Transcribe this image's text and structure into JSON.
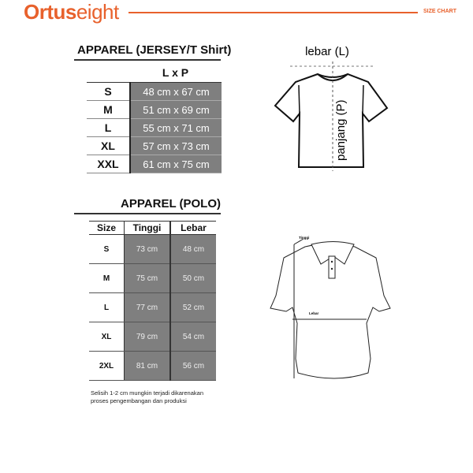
{
  "header": {
    "brand_bold": "Ortus",
    "brand_light": "eight",
    "label": "SIZE CHART",
    "accent": "#e8612c"
  },
  "jersey": {
    "title": "APPAREL (JERSEY/T Shirt)",
    "column_header": "L x P",
    "rows": [
      {
        "size": "S",
        "value": "48 cm x 67 cm"
      },
      {
        "size": "M",
        "value": "51 cm x 69 cm"
      },
      {
        "size": "L",
        "value": "55 cm x 71 cm"
      },
      {
        "size": "XL",
        "value": "57 cm x 73 cm"
      },
      {
        "size": "XXL",
        "value": "61 cm x 75 cm"
      }
    ],
    "diagram": {
      "width_label": "lebar (L)",
      "length_label": "panjang (P)"
    }
  },
  "polo": {
    "title": "APPAREL (POLO)",
    "headers": [
      "Size",
      "Tinggi",
      "Lebar"
    ],
    "rows": [
      {
        "size": "S",
        "tinggi": "73 cm",
        "lebar": "48 cm"
      },
      {
        "size": "M",
        "tinggi": "75 cm",
        "lebar": "50 cm"
      },
      {
        "size": "L",
        "tinggi": "77 cm",
        "lebar": "52 cm"
      },
      {
        "size": "XL",
        "tinggi": "79 cm",
        "lebar": "54 cm"
      },
      {
        "size": "2XL",
        "tinggi": "81 cm",
        "lebar": "56 cm"
      }
    ],
    "note_line1": "Selisih 1-2 cm mungkin terjadi dikarenakan",
    "note_line2": "proses pengembangan dan produksi",
    "diagram": {
      "height_label": "Tinggi",
      "width_label": "Lebar"
    }
  }
}
